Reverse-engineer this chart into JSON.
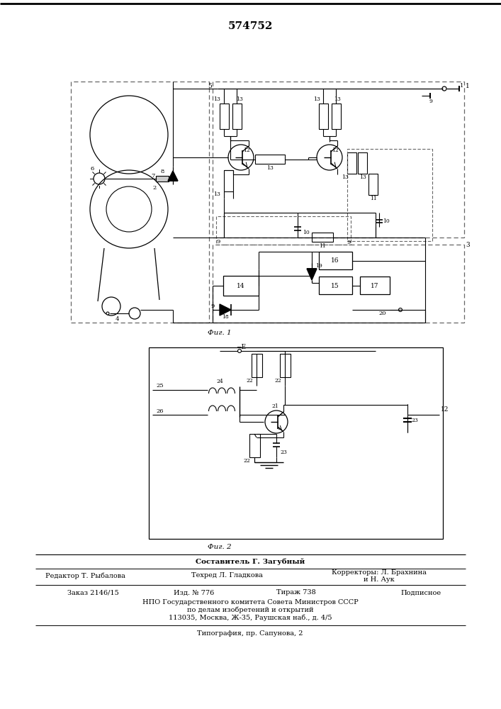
{
  "title": "574752",
  "bg_color": "#ffffff",
  "line_color": "#000000",
  "fig1_label": "Фиг. 1",
  "fig2_label": "Фиг. 2",
  "footer_line1": "Составитель Г. Загубный",
  "footer_col1": "Редактор Т. Рыбалова",
  "footer_col2": "Техред Л. Гладкова",
  "footer_col3a": "Корректоры: Л. Брахнина",
  "footer_col3b": "и Н. Аук",
  "footer_line3a": "Заказ 2146/15",
  "footer_line3b": "Изд. № 776",
  "footer_line3c": "Тираж 738",
  "footer_line3d": "Подписное",
  "footer_line4": "НПО Государственного комитета Совета Министров СССР",
  "footer_line5": "по делам изобретений и открытий",
  "footer_line6": "113035, Москва, Ж-35, Раушская наб., д. 4/5",
  "footer_line7": "Типография, пр. Сапунова, 2"
}
